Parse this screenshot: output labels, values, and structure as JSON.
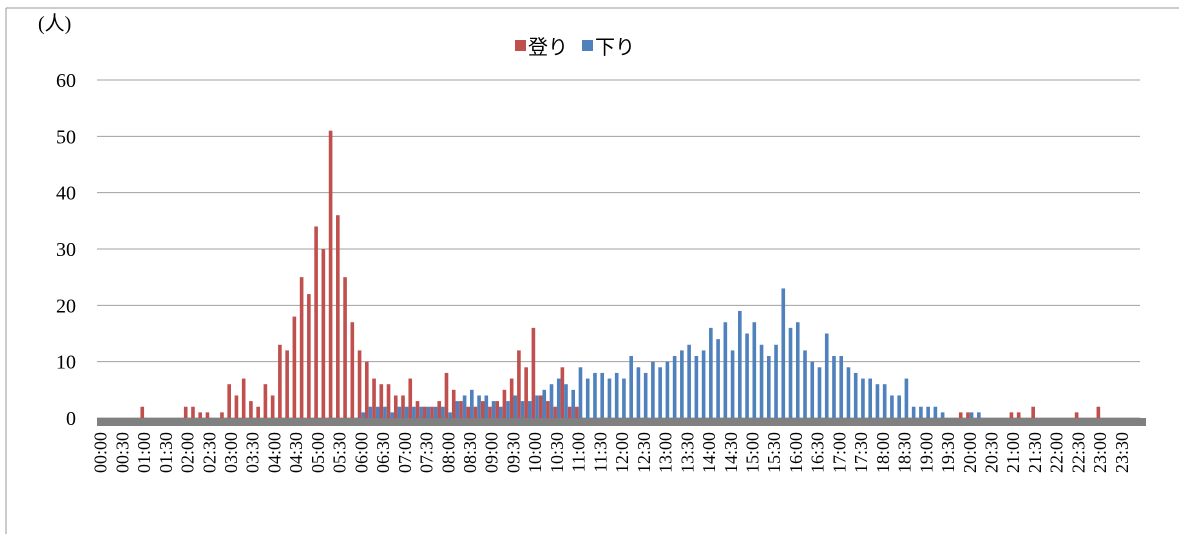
{
  "chart_data": {
    "type": "bar",
    "ylabel": "(人)",
    "categories": [
      "00:00",
      null,
      null,
      "00:30",
      null,
      null,
      "01:00",
      null,
      null,
      "01:30",
      null,
      null,
      "02:00",
      null,
      null,
      "02:30",
      null,
      null,
      "03:00",
      null,
      null,
      "03:30",
      null,
      null,
      "04:00",
      null,
      null,
      "04:30",
      null,
      null,
      "05:00",
      null,
      null,
      "05:30",
      null,
      null,
      "06:00",
      null,
      null,
      "06:30",
      null,
      null,
      "07:00",
      null,
      null,
      "07:30",
      null,
      null,
      "08:00",
      null,
      null,
      "08:30",
      null,
      null,
      "09:00",
      null,
      null,
      "09:30",
      null,
      null,
      "10:00",
      null,
      null,
      "10:30",
      null,
      null,
      "11:00",
      null,
      null,
      "11:30",
      null,
      null,
      "12:00",
      null,
      null,
      "12:30",
      null,
      null,
      "13:00",
      null,
      null,
      "13:30",
      null,
      null,
      "14:00",
      null,
      null,
      "14:30",
      null,
      null,
      "15:00",
      null,
      null,
      "15:30",
      null,
      null,
      "16:00",
      null,
      null,
      "16:30",
      null,
      null,
      "17:00",
      null,
      null,
      "17:30",
      null,
      null,
      "18:00",
      null,
      null,
      "18:30",
      null,
      null,
      "19:00",
      null,
      null,
      "19:30",
      null,
      null,
      "20:00",
      null,
      null,
      "20:30",
      null,
      null,
      "21:00",
      null,
      null,
      "21:30",
      null,
      null,
      "22:00",
      null,
      null,
      "22:30",
      null,
      null,
      "23:00",
      null,
      null,
      "23:30",
      null,
      null
    ],
    "series": [
      {
        "name": "登り",
        "color": "#c0504d",
        "values": [
          0,
          0,
          0,
          0,
          0,
          0,
          2,
          0,
          0,
          0,
          0,
          0,
          2,
          2,
          1,
          1,
          0,
          1,
          6,
          4,
          7,
          3,
          2,
          6,
          4,
          13,
          12,
          18,
          25,
          22,
          34,
          30,
          51,
          36,
          25,
          17,
          12,
          10,
          7,
          6,
          6,
          4,
          4,
          7,
          3,
          2,
          2,
          3,
          8,
          5,
          3,
          2,
          2,
          3,
          2,
          3,
          5,
          7,
          12,
          9,
          16,
          4,
          3,
          2,
          9,
          2,
          2,
          0,
          0,
          0,
          0,
          0,
          0,
          0,
          0,
          0,
          0,
          0,
          0,
          0,
          0,
          0,
          0,
          0,
          0,
          0,
          0,
          0,
          0,
          0,
          0,
          0,
          0,
          0,
          0,
          0,
          0,
          0,
          0,
          0,
          0,
          0,
          0,
          0,
          0,
          0,
          0,
          0,
          0,
          0,
          0,
          0,
          0,
          0,
          0,
          0,
          0,
          0,
          0,
          1,
          1,
          0,
          0,
          0,
          0,
          0,
          1,
          1,
          0,
          2,
          0,
          0,
          0,
          0,
          0,
          1,
          0,
          0,
          2,
          0,
          0,
          0,
          0,
          0
        ]
      },
      {
        "name": "下り",
        "color": "#4f81bd",
        "values": [
          0,
          0,
          0,
          0,
          0,
          0,
          0,
          0,
          0,
          0,
          0,
          0,
          0,
          0,
          0,
          0,
          0,
          0,
          0,
          0,
          0,
          0,
          0,
          0,
          0,
          0,
          0,
          0,
          0,
          0,
          0,
          0,
          0,
          0,
          0,
          0,
          1,
          2,
          2,
          2,
          1,
          2,
          2,
          2,
          2,
          2,
          2,
          2,
          1,
          3,
          4,
          5,
          4,
          4,
          3,
          2,
          3,
          4,
          3,
          3,
          4,
          5,
          6,
          7,
          6,
          5,
          9,
          7,
          8,
          8,
          7,
          8,
          7,
          11,
          9,
          8,
          10,
          9,
          10,
          11,
          12,
          13,
          11,
          12,
          16,
          14,
          17,
          12,
          19,
          15,
          17,
          13,
          11,
          13,
          23,
          16,
          17,
          12,
          10,
          9,
          15,
          11,
          11,
          9,
          8,
          7,
          7,
          6,
          6,
          4,
          4,
          7,
          2,
          2,
          2,
          2,
          1,
          0,
          0,
          0,
          1,
          1,
          0,
          0,
          0,
          0,
          0,
          0,
          0,
          0,
          0,
          0,
          0,
          0,
          0,
          0,
          0,
          0,
          0,
          0,
          0,
          0,
          0,
          0
        ]
      }
    ],
    "ylim": [
      0,
      60
    ],
    "yticks": [
      0,
      10,
      20,
      30,
      40,
      50,
      60
    ],
    "grid": true,
    "legend": "top"
  }
}
